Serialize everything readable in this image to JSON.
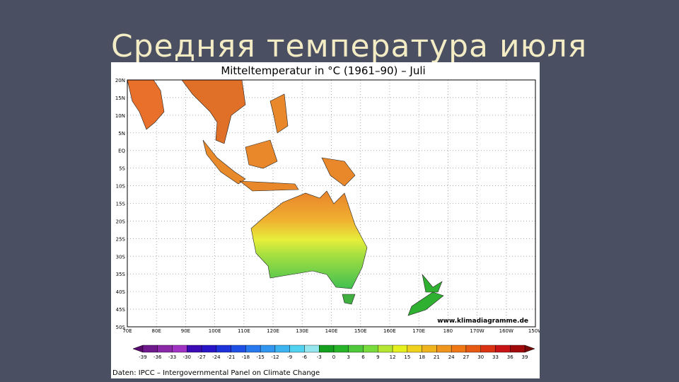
{
  "slide": {
    "title": "Средняя температура июля"
  },
  "map": {
    "title": "Mitteltemperatur in °C (1961–90) – Juli",
    "lat_labels": [
      "20N",
      "15N",
      "10N",
      "5N",
      "EQ",
      "5S",
      "10S",
      "15S",
      "20S",
      "25S",
      "30S",
      "35S",
      "40S",
      "45S",
      "50S"
    ],
    "lon_labels": [
      "70E",
      "80E",
      "90E",
      "100E",
      "110E",
      "120E",
      "130E",
      "140E",
      "150E",
      "160E",
      "170E",
      "180",
      "170W",
      "160W",
      "150W"
    ],
    "watermark": "www.klimadiagramme.de",
    "source": "Daten: IPCC – Intergovernmental Panel on Climate Change"
  },
  "legend": {
    "labels": [
      "-39",
      "-36",
      "-33",
      "-30",
      "-27",
      "-24",
      "-21",
      "-18",
      "-15",
      "-12",
      "-9",
      "-6",
      "-3",
      "0",
      "3",
      "6",
      "9",
      "12",
      "15",
      "18",
      "21",
      "24",
      "27",
      "30",
      "33",
      "36",
      "39"
    ],
    "colors": [
      "#5a0a6e",
      "#6e1a8c",
      "#8a28a8",
      "#a032c4",
      "#3c0ab4",
      "#2814c8",
      "#1e32dc",
      "#1e50e6",
      "#2878f0",
      "#3296f0",
      "#3cb4f0",
      "#50d2f0",
      "#96e6f0",
      "#14a01e",
      "#28b428",
      "#50c83c",
      "#78dc3c",
      "#b4e632",
      "#e6f01e",
      "#f0d21e",
      "#f0b41e",
      "#f0961e",
      "#f07814",
      "#e65a14",
      "#dc3214",
      "#c81414",
      "#a00a0a",
      "#780a0a"
    ]
  }
}
